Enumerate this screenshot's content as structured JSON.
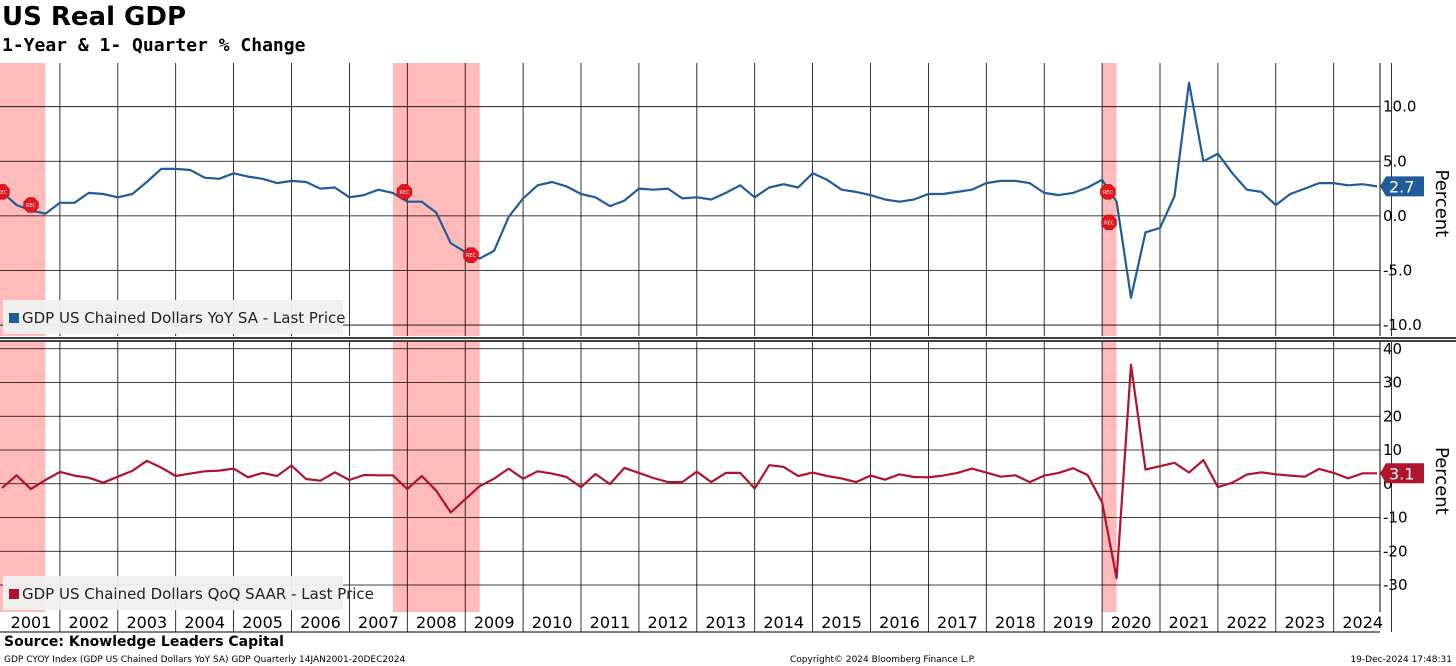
{
  "header": {
    "title": "US Real GDP",
    "subtitle": "1-Year & 1- Quarter % Change"
  },
  "footer": {
    "source": "Source: Knowledge Leaders Capital",
    "index_note": "GDP CYOY Index (GDP US Chained Dollars YoY SA) GDP  Quarterly 14JAN2001-20DEC2024",
    "copyright": "Copyright© 2024 Bloomberg Finance L.P.",
    "timestamp": "19-Dec-2024 17:48:31"
  },
  "chart_data": [
    {
      "type": "line",
      "ylabel": "Percent",
      "ylim": [
        -11,
        14
      ],
      "yticks": [
        10.0,
        5.0,
        0.0,
        -5.0,
        -10.0
      ],
      "ytick_labels": [
        "10.0",
        "5.0",
        "0.0",
        "-5.0",
        "-10.0"
      ],
      "x_axis": "year",
      "x_start": 2001.0,
      "x_step": 0.25,
      "series": [
        {
          "name": "GDP US Chained Dollars YoY SA - Last Price",
          "color": "#1f5c99",
          "last_value_label": "2.7",
          "values": [
            2.2,
            1.0,
            0.5,
            0.2,
            1.2,
            1.2,
            2.1,
            2.0,
            1.7,
            2.0,
            3.1,
            4.3,
            4.3,
            4.2,
            3.5,
            3.4,
            3.9,
            3.6,
            3.4,
            3.0,
            3.2,
            3.1,
            2.5,
            2.6,
            1.7,
            1.9,
            2.4,
            2.1,
            1.3,
            1.3,
            0.3,
            -2.5,
            -3.3,
            -3.9,
            -3.2,
            -0.1,
            1.6,
            2.8,
            3.1,
            2.7,
            2.0,
            1.7,
            0.9,
            1.4,
            2.5,
            2.4,
            2.5,
            1.6,
            1.7,
            1.5,
            2.1,
            2.8,
            1.7,
            2.6,
            2.9,
            2.6,
            3.9,
            3.3,
            2.4,
            2.2,
            1.9,
            1.5,
            1.3,
            1.5,
            2.0,
            2.0,
            2.2,
            2.4,
            3.0,
            3.2,
            3.2,
            3.0,
            2.1,
            1.9,
            2.1,
            2.6,
            3.3,
            1.3,
            -7.5,
            -1.5,
            -1.1,
            1.8,
            12.2,
            5.0,
            5.7,
            3.9,
            2.4,
            2.2,
            1.0,
            2.0,
            2.5,
            3.0,
            3.0,
            2.8,
            2.9,
            2.7
          ]
        }
      ],
      "recessions": [
        [
          2000.8,
          2001.75
        ],
        [
          2007.75,
          2009.25
        ],
        [
          2020.0,
          2020.25
        ]
      ],
      "rec_markers": [
        [
          2001.0,
          2.2
        ],
        [
          2001.5,
          1.0
        ],
        [
          2007.95,
          2.2
        ],
        [
          2009.1,
          -3.6
        ],
        [
          2020.1,
          2.2
        ],
        [
          2020.12,
          -0.6
        ]
      ],
      "rec_label": "REC"
    },
    {
      "type": "line",
      "ylabel": "Percent",
      "ylim": [
        -38,
        42
      ],
      "yticks": [
        40,
        30,
        20,
        10,
        0,
        -10,
        -20,
        -30
      ],
      "ytick_labels": [
        "40",
        "30",
        "20",
        "10",
        "0",
        "-10",
        "-20",
        "-30"
      ],
      "x_axis": "year",
      "x_start": 2001.0,
      "x_step": 0.25,
      "series": [
        {
          "name": "GDP US Chained Dollars QoQ SAAR - Last Price",
          "color": "#b0142c",
          "last_value_label": "3.1",
          "values": [
            -1.3,
            2.5,
            -1.6,
            1.1,
            3.5,
            2.4,
            1.8,
            0.3,
            2.1,
            3.8,
            6.8,
            4.8,
            2.3,
            3.0,
            3.7,
            3.9,
            4.5,
            1.9,
            3.2,
            2.3,
            5.4,
            1.4,
            0.9,
            3.4,
            1.1,
            2.6,
            2.5,
            2.5,
            -1.6,
            2.3,
            -2.1,
            -8.5,
            -4.6,
            -0.7,
            1.5,
            4.5,
            1.5,
            3.7,
            3.0,
            2.0,
            -1.0,
            2.9,
            -0.1,
            4.7,
            3.2,
            1.7,
            0.5,
            0.5,
            3.6,
            0.5,
            3.2,
            3.2,
            -1.4,
            5.5,
            5.0,
            2.3,
            3.3,
            2.3,
            1.6,
            0.5,
            2.4,
            1.2,
            2.8,
            2.0,
            1.9,
            2.4,
            3.2,
            4.5,
            3.3,
            2.1,
            2.5,
            0.5,
            2.4,
            3.2,
            4.6,
            2.6,
            -5.5,
            -28.0,
            35.2,
            4.2,
            5.2,
            6.2,
            3.3,
            7.0,
            -1.0,
            0.3,
            2.7,
            3.4,
            2.8,
            2.4,
            2.1,
            4.4,
            3.2,
            1.6,
            3.1,
            3.1
          ]
        }
      ],
      "recessions": [
        [
          2000.8,
          2001.75
        ],
        [
          2007.75,
          2009.25
        ],
        [
          2020.0,
          2020.25
        ]
      ]
    }
  ],
  "x_tick_labels": [
    "2001",
    "2002",
    "2003",
    "2004",
    "2005",
    "2006",
    "2007",
    "2008",
    "2009",
    "2010",
    "2011",
    "2012",
    "2013",
    "2014",
    "2015",
    "2016",
    "2017",
    "2018",
    "2019",
    "2020",
    "2021",
    "2022",
    "2023",
    "2024"
  ],
  "colors": {
    "recession_fill": "#ffb3b3",
    "grid": "#000000",
    "legend_bg": "#f0f0f0",
    "rec_marker": "#e8141c"
  }
}
